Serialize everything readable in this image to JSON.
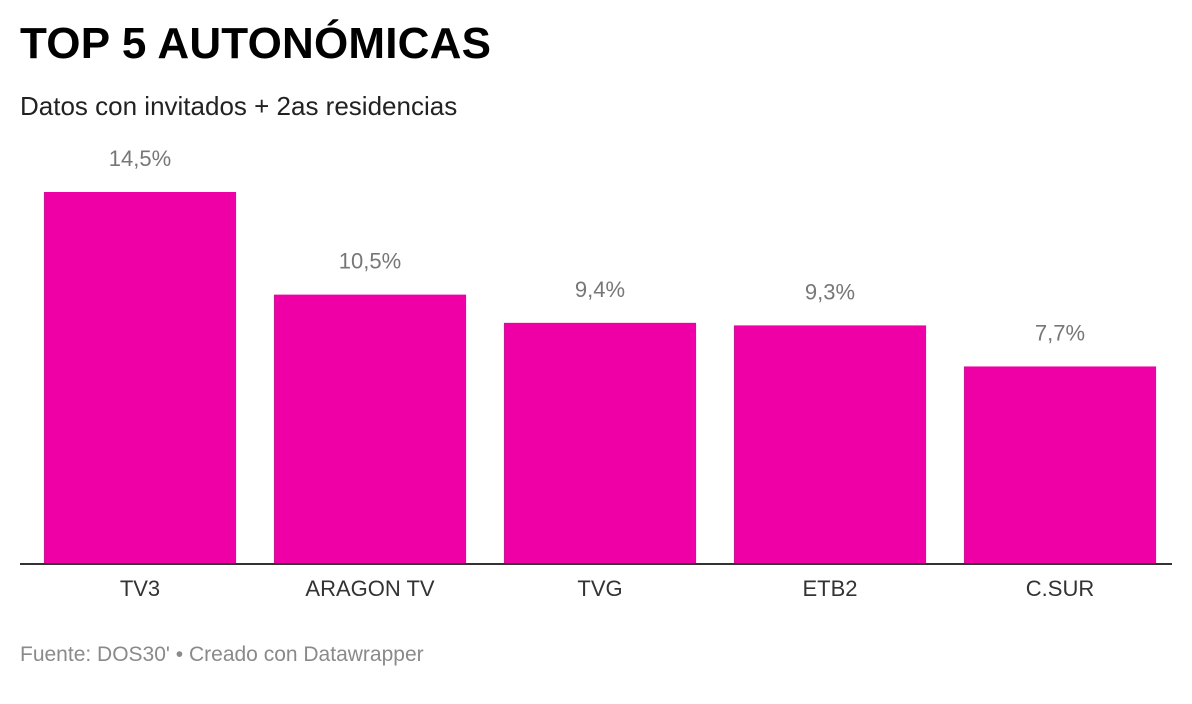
{
  "header": {
    "title": "TOP 5 AUTONÓMICAS",
    "subtitle": "Datos con invitados + 2as residencias"
  },
  "footer": {
    "source": "Fuente: DOS30'",
    "separator": "•",
    "credit": "Creado con Datawrapper"
  },
  "colors": {
    "bar": "#ee00a6",
    "value_label": "#777777",
    "category_label": "#333333",
    "baseline": "#333333"
  },
  "chart_data": {
    "type": "bar",
    "title": "TOP 5 AUTONÓMICAS",
    "subtitle": "Datos con invitados + 2as residencias",
    "categories": [
      "TV3",
      "ARAGON TV",
      "TVG",
      "ETB2",
      "C.SUR"
    ],
    "values": [
      14.5,
      10.5,
      9.4,
      9.3,
      7.7
    ],
    "value_labels": [
      "14,5%",
      "10,5%",
      "9,4%",
      "9,3%",
      "7,7%"
    ],
    "unit": "%",
    "ylim": [
      0,
      14.5
    ],
    "grid": false,
    "legend": "none"
  }
}
